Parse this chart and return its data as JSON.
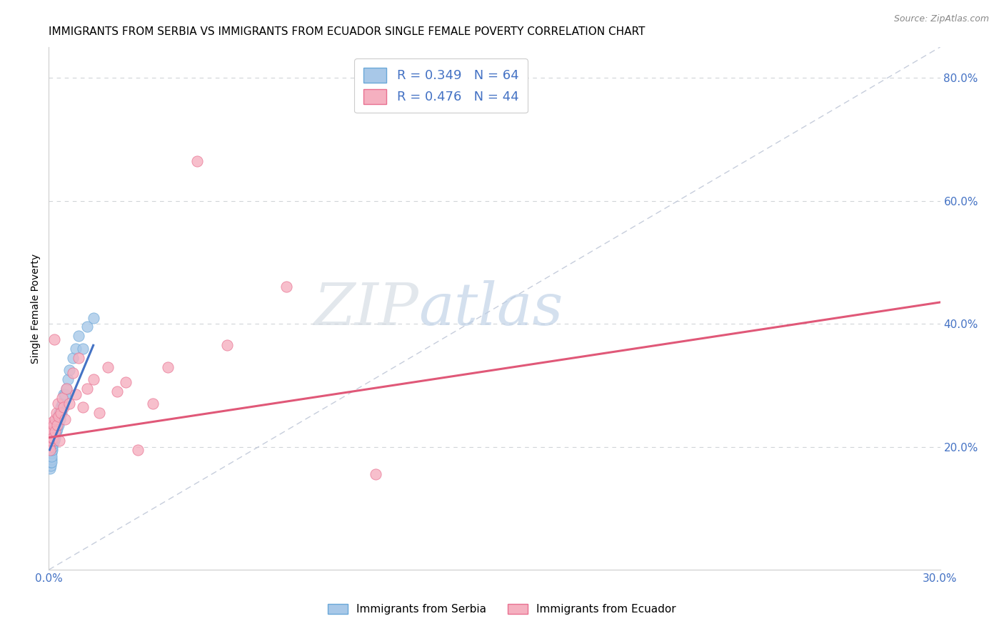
{
  "title": "IMMIGRANTS FROM SERBIA VS IMMIGRANTS FROM ECUADOR SINGLE FEMALE POVERTY CORRELATION CHART",
  "source": "Source: ZipAtlas.com",
  "ylabel": "Single Female Poverty",
  "xlim": [
    0.0,
    0.3
  ],
  "ylim": [
    0.0,
    0.85
  ],
  "xticks": [
    0.0,
    0.05,
    0.1,
    0.15,
    0.2,
    0.25,
    0.3
  ],
  "xtick_labels": [
    "0.0%",
    "",
    "",
    "",
    "",
    "",
    "30.0%"
  ],
  "ytick_labels_right": [
    "20.0%",
    "40.0%",
    "60.0%",
    "80.0%"
  ],
  "yticks_right": [
    0.2,
    0.4,
    0.6,
    0.8
  ],
  "serbia_color": "#a8c8e8",
  "ecuador_color": "#f5b0c0",
  "serbia_edge": "#6aa8d8",
  "ecuador_edge": "#e87090",
  "line_serbia_color": "#4472c4",
  "line_ecuador_color": "#e05878",
  "ref_line_color": "#c0c8d8",
  "legend_serbia_label": "Immigrants from Serbia",
  "legend_ecuador_label": "Immigrants from Ecuador",
  "legend_r_serbia": "R = 0.349",
  "legend_n_serbia": "N = 64",
  "legend_r_ecuador": "R = 0.476",
  "legend_n_ecuador": "N = 44",
  "watermark": "ZIPatlas",
  "serbia_x": [
    0.0003,
    0.0003,
    0.0004,
    0.0004,
    0.0005,
    0.0005,
    0.0005,
    0.0006,
    0.0006,
    0.0006,
    0.0007,
    0.0007,
    0.0007,
    0.0008,
    0.0008,
    0.0008,
    0.0008,
    0.0009,
    0.0009,
    0.0009,
    0.001,
    0.001,
    0.001,
    0.001,
    0.0011,
    0.0011,
    0.0012,
    0.0012,
    0.0013,
    0.0013,
    0.0014,
    0.0014,
    0.0015,
    0.0015,
    0.0016,
    0.0017,
    0.0018,
    0.0018,
    0.002,
    0.002,
    0.0022,
    0.0023,
    0.0025,
    0.0026,
    0.0028,
    0.003,
    0.0032,
    0.0035,
    0.0038,
    0.004,
    0.0042,
    0.0045,
    0.0048,
    0.005,
    0.0055,
    0.006,
    0.0065,
    0.007,
    0.008,
    0.009,
    0.01,
    0.0115,
    0.013,
    0.015
  ],
  "serbia_y": [
    0.185,
    0.195,
    0.175,
    0.205,
    0.165,
    0.18,
    0.195,
    0.17,
    0.185,
    0.2,
    0.175,
    0.19,
    0.21,
    0.18,
    0.195,
    0.21,
    0.22,
    0.175,
    0.19,
    0.205,
    0.185,
    0.2,
    0.215,
    0.225,
    0.195,
    0.215,
    0.2,
    0.22,
    0.205,
    0.225,
    0.21,
    0.23,
    0.21,
    0.225,
    0.22,
    0.235,
    0.21,
    0.23,
    0.215,
    0.235,
    0.22,
    0.24,
    0.225,
    0.245,
    0.23,
    0.25,
    0.235,
    0.255,
    0.245,
    0.265,
    0.255,
    0.27,
    0.27,
    0.285,
    0.285,
    0.295,
    0.31,
    0.325,
    0.345,
    0.36,
    0.38,
    0.36,
    0.395,
    0.41
  ],
  "ecuador_x": [
    0.0003,
    0.0004,
    0.0005,
    0.0006,
    0.0007,
    0.0008,
    0.0009,
    0.001,
    0.0011,
    0.0012,
    0.0013,
    0.0015,
    0.0017,
    0.0018,
    0.002,
    0.0022,
    0.0025,
    0.0028,
    0.003,
    0.0032,
    0.0035,
    0.004,
    0.0045,
    0.005,
    0.0055,
    0.006,
    0.007,
    0.008,
    0.009,
    0.01,
    0.0115,
    0.013,
    0.015,
    0.017,
    0.02,
    0.023,
    0.026,
    0.03,
    0.035,
    0.04,
    0.05,
    0.06,
    0.08,
    0.11
  ],
  "ecuador_y": [
    0.2,
    0.215,
    0.195,
    0.225,
    0.21,
    0.235,
    0.22,
    0.23,
    0.215,
    0.24,
    0.225,
    0.215,
    0.235,
    0.375,
    0.245,
    0.225,
    0.255,
    0.235,
    0.27,
    0.25,
    0.21,
    0.255,
    0.28,
    0.265,
    0.245,
    0.295,
    0.27,
    0.32,
    0.285,
    0.345,
    0.265,
    0.295,
    0.31,
    0.255,
    0.33,
    0.29,
    0.305,
    0.195,
    0.27,
    0.33,
    0.665,
    0.365,
    0.46,
    0.155
  ],
  "grid_color": "#d0d4d8",
  "title_fontsize": 11,
  "axis_label_fontsize": 10,
  "tick_fontsize": 11,
  "legend_fontsize": 13,
  "serbia_line_x0": 0.0003,
  "serbia_line_x1": 0.015,
  "serbia_line_y0": 0.195,
  "serbia_line_y1": 0.365,
  "ecuador_line_x0": 0.0,
  "ecuador_line_x1": 0.3,
  "ecuador_line_y0": 0.215,
  "ecuador_line_y1": 0.435,
  "ref_line_x0": 0.0,
  "ref_line_x1": 0.3,
  "ref_line_y0": 0.0,
  "ref_line_y1": 0.85
}
